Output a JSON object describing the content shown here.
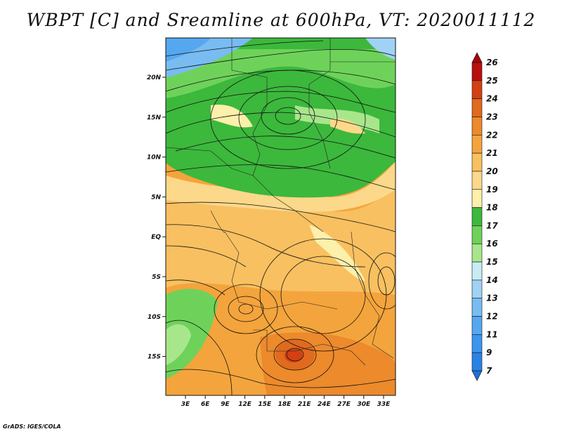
{
  "title": "WBPT [C] and Sreamline at 600hPa, VT: 2020011112",
  "credit": "GrADS: IGES/COLA",
  "map": {
    "lat_ticks": [
      "20N",
      "15N",
      "10N",
      "5N",
      "EQ",
      "5S",
      "10S",
      "15S"
    ],
    "lon_ticks": [
      "3E",
      "6E",
      "9E",
      "12E",
      "15E",
      "18E",
      "21E",
      "24E",
      "27E",
      "30E",
      "33E"
    ]
  },
  "colorbar": {
    "levels": [
      "7",
      "9",
      "11",
      "12",
      "13",
      "14",
      "15",
      "16",
      "17",
      "18",
      "19",
      "20",
      "21",
      "22",
      "23",
      "24",
      "25",
      "26"
    ],
    "colors": [
      "#1f6fd6",
      "#2a82e6",
      "#3c96ee",
      "#55a8f0",
      "#78bcf2",
      "#a0d2f6",
      "#c8ecf4",
      "#a8e68c",
      "#6ed25a",
      "#3cb83c",
      "#fcf0aa",
      "#fcd88a",
      "#f8c060",
      "#f4a43c",
      "#ec8a2c",
      "#e06a1e",
      "#d24014",
      "#b81010",
      "#a40808"
    ]
  }
}
